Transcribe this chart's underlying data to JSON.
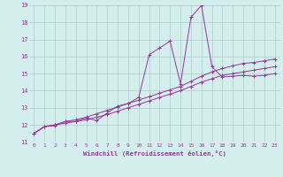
{
  "xlabel": "Windchill (Refroidissement éolien,°C)",
  "bg_color": "#d4eeee",
  "grid_color": "#aacccc",
  "line_color": "#993399",
  "xlim_min": -0.5,
  "xlim_max": 23.5,
  "ylim_min": 11,
  "ylim_max": 19,
  "xticks": [
    0,
    1,
    2,
    3,
    4,
    5,
    6,
    7,
    8,
    9,
    10,
    11,
    12,
    13,
    14,
    15,
    16,
    17,
    18,
    19,
    20,
    21,
    22,
    23
  ],
  "yticks": [
    11,
    12,
    13,
    14,
    15,
    16,
    17,
    18,
    19
  ],
  "series": [
    [
      11.5,
      11.9,
      11.95,
      12.2,
      12.2,
      12.4,
      12.25,
      12.7,
      13.1,
      13.25,
      13.6,
      16.1,
      16.5,
      16.9,
      14.4,
      18.3,
      19.0,
      15.4,
      14.8,
      14.85,
      14.9,
      14.85,
      14.9,
      15.0
    ],
    [
      11.5,
      11.9,
      12.0,
      12.2,
      12.3,
      12.45,
      12.65,
      12.85,
      13.05,
      13.25,
      13.45,
      13.65,
      13.85,
      14.05,
      14.25,
      14.55,
      14.85,
      15.1,
      15.3,
      15.45,
      15.6,
      15.65,
      15.75,
      15.85
    ],
    [
      11.5,
      11.9,
      12.0,
      12.1,
      12.2,
      12.3,
      12.45,
      12.6,
      12.8,
      13.0,
      13.2,
      13.4,
      13.6,
      13.8,
      14.0,
      14.25,
      14.5,
      14.7,
      14.9,
      15.0,
      15.1,
      15.2,
      15.3,
      15.4
    ]
  ]
}
